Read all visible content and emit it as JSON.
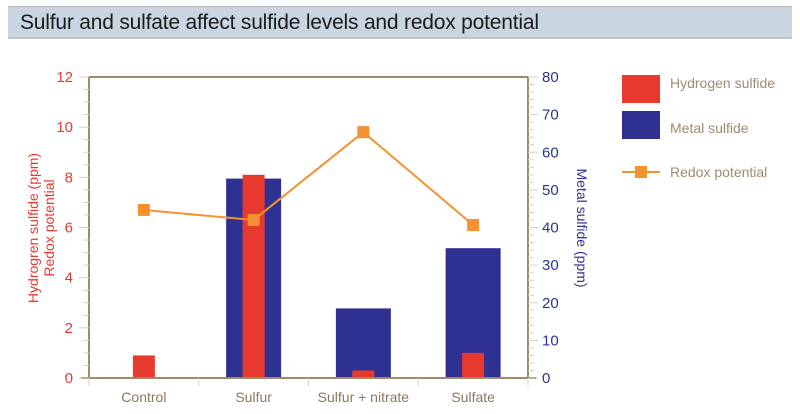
{
  "chart_data": {
    "type": "bar",
    "title": "Sulfur and sulfate affect sulfide levels and redox potential",
    "categories": [
      "Control",
      "Sulfur",
      "Sulfur + nitrate",
      "Sulfate"
    ],
    "y_left": {
      "label_lines": [
        "Hydrogren sulfide (ppm)",
        "Redox potential"
      ],
      "range": [
        0,
        12
      ],
      "ticks": [
        "0",
        "2",
        "4",
        "6",
        "8",
        "10",
        "12"
      ],
      "tick_values": [
        0,
        2,
        4,
        6,
        8,
        10,
        12
      ]
    },
    "y_right": {
      "label": "Metal sulfide (ppm)",
      "range": [
        0,
        80
      ],
      "ticks": [
        "0",
        "10",
        "20",
        "30",
        "40",
        "50",
        "60",
        "70",
        "80"
      ],
      "tick_values": [
        0,
        10,
        20,
        30,
        40,
        50,
        60,
        70,
        80
      ]
    },
    "series": [
      {
        "name": "Hydrogen sulfide",
        "type": "bar",
        "axis": "left",
        "color": "#e8392f",
        "values": [
          0.9,
          8.1,
          0.3,
          1.0
        ]
      },
      {
        "name": "Metal sulfide",
        "type": "bar",
        "axis": "right",
        "color": "#2e3191",
        "values": [
          0,
          53,
          18.5,
          34.5
        ]
      },
      {
        "name": "Redox potential",
        "type": "line",
        "axis": "left",
        "color": "#f3922f",
        "values": [
          6.7,
          6.3,
          9.8,
          6.1
        ]
      }
    ],
    "legend": {
      "position": "right",
      "items": [
        "Hydrogen sulfide",
        "Metal sulfide",
        "Redox potential"
      ]
    },
    "grid": false
  },
  "colors": {
    "axis": "#9c8a6b",
    "title_bg": "#c9d6e2"
  }
}
